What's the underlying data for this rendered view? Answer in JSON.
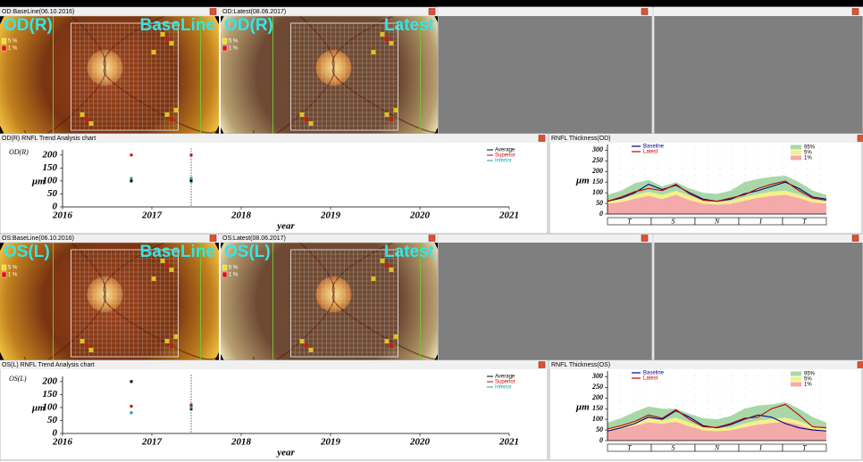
{
  "image_panels": [
    {
      "header": "OD:BaseLine(06.10.2016)",
      "eye_label": "OD(R)",
      "status": "BaseLine",
      "legend": [
        "5 %",
        "1 %"
      ]
    },
    {
      "header": "OD:Latest(08.06.2017)",
      "eye_label": "OD(R)",
      "status": "Latest",
      "legend": [
        "5 %",
        "1 %"
      ]
    },
    {
      "header": "OS:BaseLine(06.10.2016)",
      "eye_label": "OS(L)",
      "status": "BaseLine",
      "legend": [
        "5 %",
        "1 %"
      ]
    },
    {
      "header": "OS:Latest(08.06.2017)",
      "eye_label": "OS(L)",
      "status": "Latest",
      "legend": [
        "5 %",
        "1 %"
      ]
    }
  ],
  "chart_data": [
    {
      "type": "scatter",
      "title": "OD(R) RNFL Trend Analysis chart",
      "eye": "OD(R)",
      "y_label": "μm",
      "x_label": "year",
      "xlim": [
        2016,
        2021
      ],
      "xticks": [
        2016,
        2017,
        2018,
        2019,
        2020,
        2021
      ],
      "ylim": [
        0,
        220
      ],
      "yticks": [
        0,
        50,
        100,
        150,
        200
      ],
      "x": [
        2016.77,
        2017.44
      ],
      "series": [
        {
          "name": "Average",
          "color": "#000000",
          "values": [
            100,
            100
          ]
        },
        {
          "name": "Superior",
          "color": "#cc0000",
          "values": [
            200,
            200
          ]
        },
        {
          "name": "Inferior",
          "color": "#1aa0a0",
          "values": [
            110,
            110
          ]
        }
      ]
    },
    {
      "type": "line",
      "title": "RNFL Thickness(OD)",
      "y_label": "μm",
      "ylim": [
        0,
        310
      ],
      "yticks": [
        0,
        50,
        100,
        150,
        200,
        250,
        300
      ],
      "sectors": [
        "T",
        "S",
        "N",
        "I",
        "T"
      ],
      "series": [
        {
          "name": "95%",
          "style": "area",
          "color": "#a8d8a8",
          "values": [
            90,
            110,
            145,
            160,
            130,
            150,
            120,
            100,
            95,
            110,
            150,
            165,
            175,
            180,
            150,
            110,
            90
          ]
        },
        {
          "name": "5%",
          "style": "area",
          "color": "#f4f08c",
          "values": [
            60,
            70,
            90,
            105,
            90,
            110,
            85,
            62,
            58,
            62,
            80,
            95,
            105,
            110,
            92,
            68,
            60
          ]
        },
        {
          "name": "1%",
          "style": "area",
          "color": "#f4aaaa",
          "values": [
            48,
            55,
            72,
            85,
            70,
            90,
            65,
            48,
            44,
            48,
            62,
            76,
            85,
            90,
            75,
            54,
            48
          ]
        },
        {
          "name": "Baseline",
          "style": "line",
          "color": "#00008b",
          "values": [
            60,
            75,
            100,
            140,
            115,
            135,
            100,
            70,
            60,
            70,
            95,
            110,
            130,
            150,
            120,
            80,
            70
          ]
        },
        {
          "name": "Latest",
          "style": "line",
          "color": "#c00000",
          "values": [
            60,
            80,
            105,
            120,
            110,
            140,
            95,
            65,
            60,
            75,
            90,
            120,
            140,
            155,
            110,
            75,
            65
          ]
        }
      ]
    },
    {
      "type": "scatter",
      "title": "OS(L) RNFL Trend Analysis chart",
      "eye": "OS(L)",
      "y_label": "μm",
      "x_label": "year",
      "xlim": [
        2016,
        2021
      ],
      "xticks": [
        2016,
        2017,
        2018,
        2019,
        2020,
        2021
      ],
      "ylim": [
        0,
        220
      ],
      "yticks": [
        0,
        50,
        100,
        150,
        200
      ],
      "x": [
        2016.77,
        2017.44
      ],
      "series": [
        {
          "name": "Average",
          "color": "#000000",
          "values": [
            200,
            95
          ]
        },
        {
          "name": "Superior",
          "color": "#cc0000",
          "values": [
            105,
            110
          ]
        },
        {
          "name": "Inferior",
          "color": "#1aa0a0",
          "values": [
            80,
            100
          ]
        }
      ]
    },
    {
      "type": "line",
      "title": "RNFL Thickness(OS)",
      "y_label": "μm",
      "ylim": [
        0,
        310
      ],
      "yticks": [
        0,
        50,
        100,
        150,
        200,
        250,
        300
      ],
      "sectors": [
        "T",
        "S",
        "N",
        "I",
        "T"
      ],
      "series": [
        {
          "name": "95%",
          "style": "area",
          "color": "#a8d8a8",
          "values": [
            85,
            105,
            135,
            160,
            150,
            150,
            125,
            105,
            100,
            115,
            150,
            165,
            170,
            180,
            150,
            110,
            85
          ]
        },
        {
          "name": "5%",
          "style": "area",
          "color": "#f4f08c",
          "values": [
            58,
            68,
            88,
            105,
            95,
            108,
            85,
            62,
            58,
            62,
            80,
            95,
            102,
            108,
            92,
            66,
            58
          ]
        },
        {
          "name": "1%",
          "style": "area",
          "color": "#f4aaaa",
          "values": [
            46,
            54,
            70,
            85,
            78,
            88,
            66,
            48,
            44,
            48,
            62,
            75,
            82,
            88,
            74,
            52,
            46
          ]
        },
        {
          "name": "Baseline",
          "style": "line",
          "color": "#00008b",
          "values": [
            45,
            60,
            80,
            110,
            100,
            140,
            110,
            70,
            60,
            75,
            100,
            120,
            110,
            80,
            60,
            50,
            45
          ]
        },
        {
          "name": "Latest",
          "style": "line",
          "color": "#c00000",
          "values": [
            55,
            70,
            90,
            120,
            105,
            145,
            100,
            65,
            62,
            80,
            105,
            110,
            150,
            170,
            120,
            65,
            60
          ]
        }
      ]
    }
  ]
}
